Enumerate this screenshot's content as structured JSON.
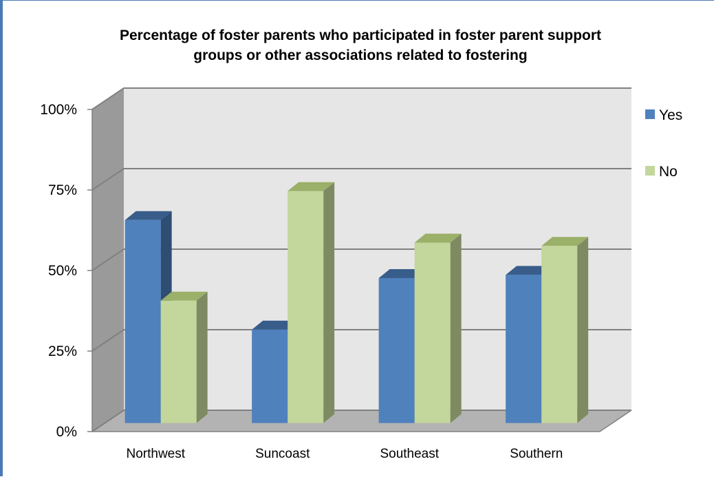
{
  "chart_data": {
    "type": "bar",
    "title_line1": "Percentage of foster parents who participated in foster parent support",
    "title_line2": "groups or other associations related to fostering",
    "categories": [
      "Northwest",
      "Suncoast",
      "Southeast",
      "Southern"
    ],
    "series": [
      {
        "name": "Yes",
        "values": [
          63,
          29,
          45,
          46
        ],
        "color": "#4f81bd",
        "top_color": "#385d8a",
        "side_color": "#2e4d73"
      },
      {
        "name": "No",
        "values": [
          38,
          72,
          56,
          55
        ],
        "color": "#c3d69b",
        "top_color": "#9bb068",
        "side_color": "#7e8a62"
      }
    ],
    "yticks": [
      "0%",
      "25%",
      "50%",
      "75%",
      "100%"
    ],
    "ylim": [
      0,
      100
    ],
    "style": "3d-clustered-column",
    "grid": true,
    "legend": "right",
    "colors": {
      "back_wall": "#e6e6e6",
      "side_wall": "#9a9a9a",
      "floor": "#b3b3b3",
      "gridline": "#808080"
    }
  }
}
